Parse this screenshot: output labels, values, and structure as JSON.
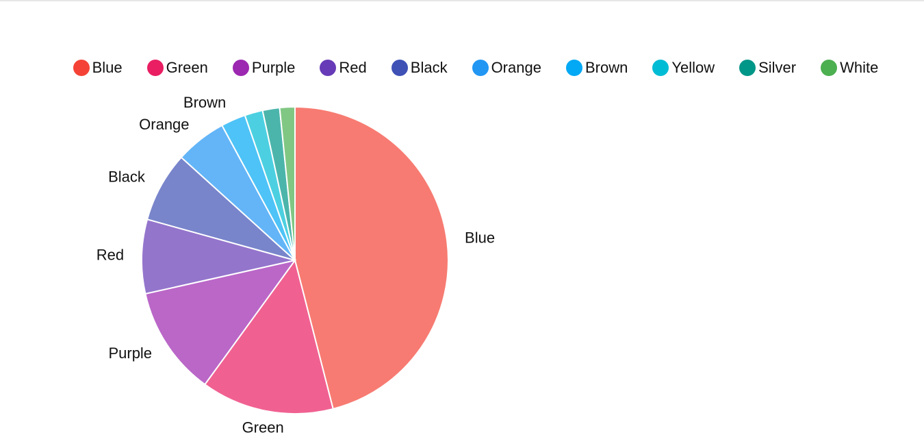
{
  "chart_data": {
    "type": "pie",
    "categories": [
      "Blue",
      "Green",
      "Purple",
      "Red",
      "Black",
      "Orange",
      "Brown",
      "Yellow",
      "Silver",
      "White"
    ],
    "values": [
      46,
      14,
      11.5,
      7.8,
      7.4,
      5.4,
      2.6,
      1.9,
      1.8,
      1.6
    ],
    "colors": [
      "#f44336",
      "#e91e63",
      "#9c27b0",
      "#673ab7",
      "#3f51b5",
      "#2196f3",
      "#03a9f4",
      "#00bcd4",
      "#009688",
      "#4caf50"
    ]
  }
}
